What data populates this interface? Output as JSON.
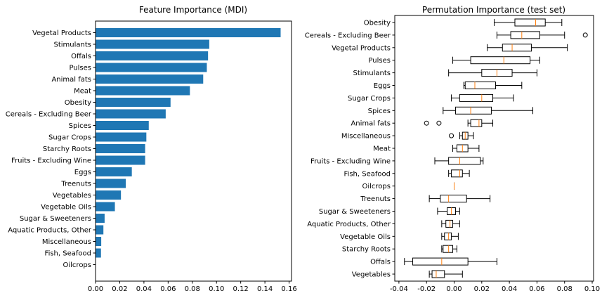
{
  "chart_data": [
    {
      "type": "bar",
      "orientation": "horizontal",
      "title": "Feature Importance (MDI)",
      "xlabel": "",
      "ylabel": "",
      "xlim": [
        0,
        0.162
      ],
      "xticks": [
        "0.00",
        "0.02",
        "0.04",
        "0.06",
        "0.08",
        "0.10",
        "0.12",
        "0.14",
        "0.16"
      ],
      "color": "#1f77b4",
      "grid": false,
      "categories": [
        "Vegetal Products",
        "Stimulants",
        "Offals",
        "Pulses",
        "Animal fats",
        "Meat",
        "Obesity",
        "Cereals - Excluding Beer",
        "Spices",
        "Sugar Crops",
        "Starchy Roots",
        "Fruits - Excluding Wine",
        "Eggs",
        "Treenuts",
        "Vegetables",
        "Vegetable Oils",
        "Sugar & Sweeteners",
        "Aquatic Products, Other",
        "Miscellaneous",
        "Fish, Seafood",
        "Oilcrops"
      ],
      "values": [
        0.153,
        0.094,
        0.093,
        0.092,
        0.089,
        0.078,
        0.062,
        0.058,
        0.044,
        0.042,
        0.041,
        0.041,
        0.03,
        0.025,
        0.021,
        0.016,
        0.0075,
        0.0065,
        0.0047,
        0.0045,
        0.0
      ]
    },
    {
      "type": "box",
      "orientation": "horizontal",
      "title": "Permutation Importance (test set)",
      "xlabel": "",
      "ylabel": "",
      "xlim": [
        -0.043,
        0.101
      ],
      "xticks": [
        "-0.04",
        "-0.02",
        "0.00",
        "0.02",
        "0.04",
        "0.06",
        "0.08",
        "0.10"
      ],
      "median_color": "#ff7f0e",
      "grid": false,
      "categories": [
        "Obesity",
        "Cereals - Excluding Beer",
        "Vegetal Products",
        "Pulses",
        "Stimulants",
        "Eggs",
        "Sugar Crops",
        "Spices",
        "Animal fats",
        "Miscellaneous",
        "Meat",
        "Fruits - Excluding Wine",
        "Fish, Seafood",
        "Oilcrops",
        "Treenuts",
        "Sugar & Sweeteners",
        "Aquatic Products, Other",
        "Vegetable Oils",
        "Starchy Roots",
        "Offals",
        "Vegetables"
      ],
      "boxes": [
        {
          "whislo": 0.029,
          "q1": 0.044,
          "med": 0.059,
          "q3": 0.066,
          "whishi": 0.078,
          "fliers": []
        },
        {
          "whislo": 0.031,
          "q1": 0.041,
          "med": 0.049,
          "q3": 0.062,
          "whishi": 0.08,
          "fliers": [
            0.095
          ]
        },
        {
          "whislo": 0.024,
          "q1": 0.035,
          "med": 0.042,
          "q3": 0.056,
          "whishi": 0.082,
          "fliers": []
        },
        {
          "whislo": -0.001,
          "q1": 0.012,
          "med": 0.036,
          "q3": 0.055,
          "whishi": 0.062,
          "fliers": []
        },
        {
          "whislo": -0.004,
          "q1": 0.02,
          "med": 0.031,
          "q3": 0.042,
          "whishi": 0.06,
          "fliers": []
        },
        {
          "whislo": 0.007,
          "q1": 0.008,
          "med": 0.015,
          "q3": 0.03,
          "whishi": 0.049,
          "fliers": []
        },
        {
          "whislo": -0.002,
          "q1": 0.004,
          "med": 0.02,
          "q3": 0.028,
          "whishi": 0.043,
          "fliers": []
        },
        {
          "whislo": -0.008,
          "q1": 0.001,
          "med": 0.012,
          "q3": 0.027,
          "whishi": 0.057,
          "fliers": []
        },
        {
          "whislo": 0.01,
          "q1": 0.012,
          "med": 0.018,
          "q3": 0.02,
          "whishi": 0.028,
          "fliers": [
            -0.02,
            -0.011
          ]
        },
        {
          "whislo": 0.004,
          "q1": 0.006,
          "med": 0.008,
          "q3": 0.01,
          "whishi": 0.014,
          "fliers": [
            -0.002
          ]
        },
        {
          "whislo": -0.001,
          "q1": 0.002,
          "med": 0.006,
          "q3": 0.01,
          "whishi": 0.018,
          "fliers": []
        },
        {
          "whislo": -0.014,
          "q1": -0.004,
          "med": 0.004,
          "q3": 0.019,
          "whishi": 0.021,
          "fliers": []
        },
        {
          "whislo": -0.004,
          "q1": -0.002,
          "med": 0.004,
          "q3": 0.006,
          "whishi": 0.011,
          "fliers": []
        },
        {
          "whislo": 0.0,
          "q1": 0.0,
          "med": 0.0,
          "q3": 0.0,
          "whishi": 0.0,
          "fliers": []
        },
        {
          "whislo": -0.018,
          "q1": -0.01,
          "med": -0.004,
          "q3": 0.009,
          "whishi": 0.026,
          "fliers": []
        },
        {
          "whislo": -0.012,
          "q1": -0.005,
          "med": -0.002,
          "q3": 0.001,
          "whishi": 0.004,
          "fliers": []
        },
        {
          "whislo": -0.009,
          "q1": -0.006,
          "med": -0.003,
          "q3": -0.001,
          "whishi": 0.004,
          "fliers": []
        },
        {
          "whislo": -0.009,
          "q1": -0.007,
          "med": -0.004,
          "q3": -0.002,
          "whishi": 0.003,
          "fliers": []
        },
        {
          "whislo": -0.009,
          "q1": -0.008,
          "med": -0.004,
          "q3": -0.001,
          "whishi": 0.002,
          "fliers": []
        },
        {
          "whislo": -0.036,
          "q1": -0.03,
          "med": -0.009,
          "q3": 0.01,
          "whishi": 0.031,
          "fliers": []
        },
        {
          "whislo": -0.018,
          "q1": -0.016,
          "med": -0.013,
          "q3": -0.007,
          "whishi": 0.006,
          "fliers": []
        }
      ]
    }
  ]
}
